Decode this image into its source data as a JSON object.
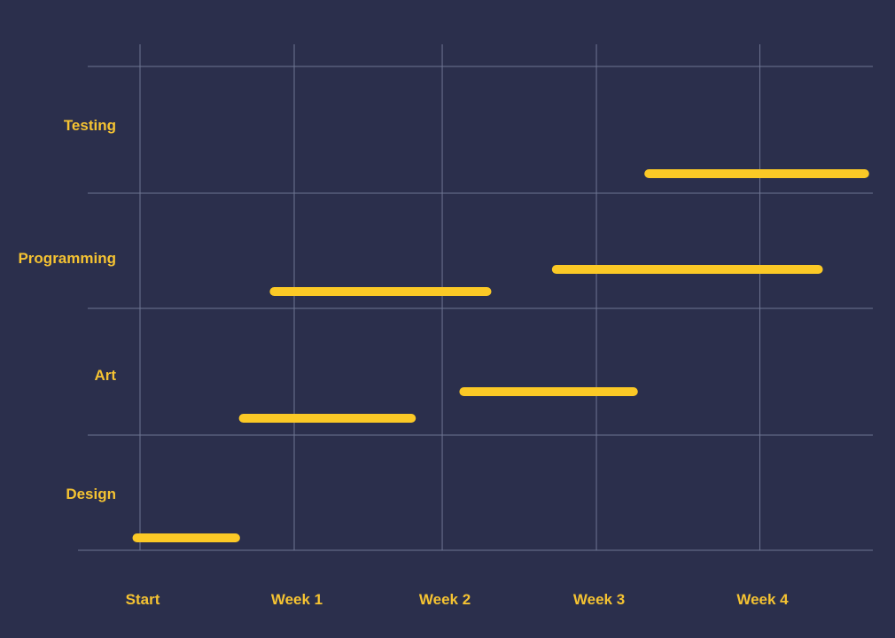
{
  "chart_data": {
    "type": "gantt",
    "title": "",
    "xlabel": "",
    "ylabel": "",
    "x_ticks": [
      {
        "label": "Start",
        "value": 0
      },
      {
        "label": "Week 1",
        "value": 1
      },
      {
        "label": "Week 2",
        "value": 1.96
      },
      {
        "label": "Week 3",
        "value": 2.96
      },
      {
        "label": "Week 4",
        "value": 4.02
      }
    ],
    "xlim": [
      -0.34,
      4.75
    ],
    "categories": [
      "Testing",
      "Programming",
      "Art",
      "Design"
    ],
    "tasks": [
      {
        "category": "Testing",
        "start": 3.3,
        "end": 4.7
      },
      {
        "category": "Programming",
        "start": 2.7,
        "end": 4.4
      },
      {
        "category": "Programming",
        "start": 0.87,
        "end": 2.25
      },
      {
        "category": "Art",
        "start": 2.1,
        "end": 3.2
      },
      {
        "category": "Art",
        "start": 0.67,
        "end": 1.76
      },
      {
        "category": "Design",
        "start": -0.02,
        "end": 0.62
      }
    ],
    "grid": true,
    "colors": {
      "background": "#2b2f4c",
      "bar": "#fbc926",
      "label": "#f5c332",
      "grid": "#6e7592"
    }
  }
}
